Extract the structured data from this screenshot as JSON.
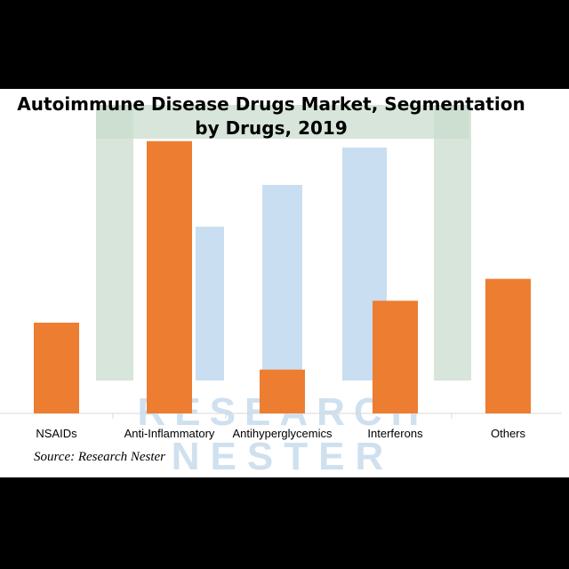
{
  "chart_data": {
    "type": "bar",
    "title": "Autoimmune Disease Drugs Market, Segmentation by Drugs, 2019",
    "categories": [
      "NSAIDs",
      "Anti-Inflammatory",
      "Antihyperglycemics",
      "Interferons",
      "Others"
    ],
    "values": [
      29,
      87,
      14,
      36,
      43
    ],
    "ylim": [
      0,
      90
    ],
    "grid": false,
    "bar_color": "#ed7d31"
  },
  "source": "Source: Research Nester",
  "watermark": {
    "line1": "RESEARCH",
    "line2": "NESTER"
  },
  "colors": {
    "background": "#000000",
    "panel": "#ffffff",
    "axis": "#d9d9d9"
  }
}
